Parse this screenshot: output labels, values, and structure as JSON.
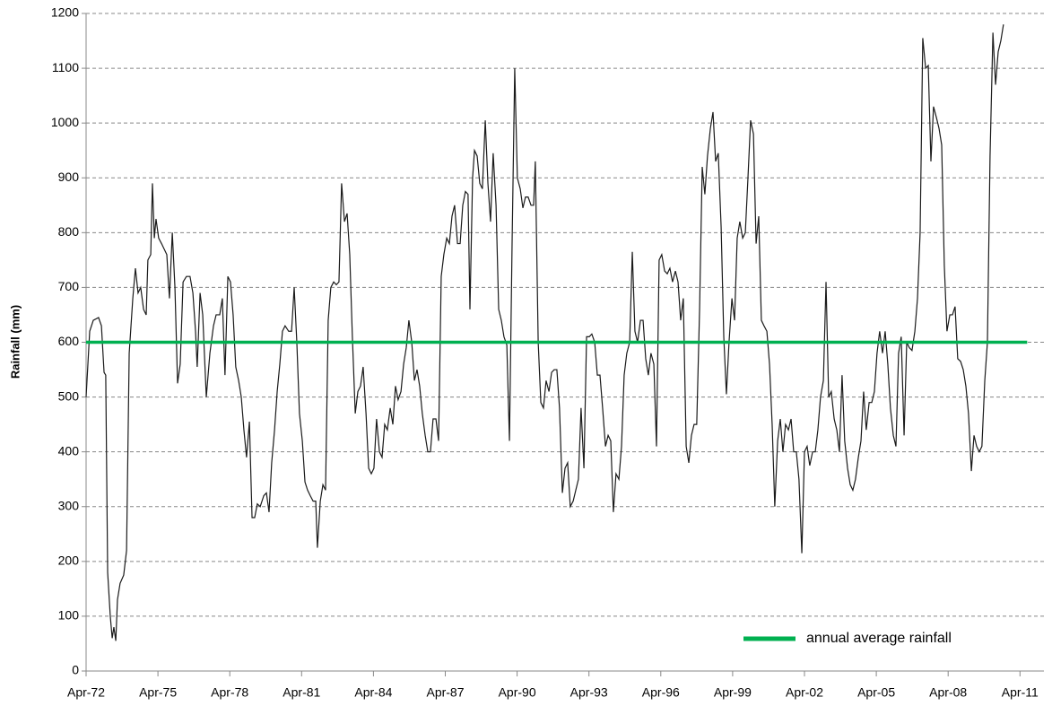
{
  "chart_data": {
    "type": "line",
    "y_label": "Rainfall (mm)",
    "ylim": [
      0,
      1200
    ],
    "yticks": [
      0,
      100,
      200,
      300,
      400,
      500,
      600,
      700,
      800,
      900,
      1000,
      1100,
      1200
    ],
    "xlim": [
      1972.25,
      2012.25
    ],
    "xticks": [
      {
        "value": 1972.25,
        "label": "Apr-72"
      },
      {
        "value": 1975.25,
        "label": "Apr-75"
      },
      {
        "value": 1978.25,
        "label": "Apr-78"
      },
      {
        "value": 1981.25,
        "label": "Apr-81"
      },
      {
        "value": 1984.25,
        "label": "Apr-84"
      },
      {
        "value": 1987.25,
        "label": "Apr-87"
      },
      {
        "value": 1990.25,
        "label": "Apr-90"
      },
      {
        "value": 1993.25,
        "label": "Apr-93"
      },
      {
        "value": 1996.25,
        "label": "Apr-96"
      },
      {
        "value": 1999.25,
        "label": "Apr-99"
      },
      {
        "value": 2002.25,
        "label": "Apr-02"
      },
      {
        "value": 2005.25,
        "label": "Apr-05"
      },
      {
        "value": 2008.25,
        "label": "Apr-08"
      },
      {
        "value": 2011.25,
        "label": "Apr-11"
      }
    ],
    "grid": true,
    "legend": "lower right",
    "series": [
      {
        "color": "#1a1a1a",
        "x": [
          1972.25,
          1972.4,
          1972.55,
          1972.77,
          1972.89,
          1973.0,
          1973.07,
          1973.15,
          1973.26,
          1973.34,
          1973.41,
          1973.49,
          1973.56,
          1973.67,
          1973.82,
          1973.94,
          1974.05,
          1974.2,
          1974.31,
          1974.42,
          1974.53,
          1974.65,
          1974.76,
          1974.83,
          1974.95,
          1975.02,
          1975.1,
          1975.17,
          1975.28,
          1975.4,
          1975.51,
          1975.62,
          1975.73,
          1975.85,
          1975.96,
          1976.07,
          1976.18,
          1976.3,
          1976.44,
          1976.59,
          1976.71,
          1976.82,
          1976.89,
          1977.01,
          1977.12,
          1977.27,
          1977.42,
          1977.57,
          1977.68,
          1977.83,
          1977.94,
          1978.05,
          1978.17,
          1978.28,
          1978.39,
          1978.5,
          1978.62,
          1978.73,
          1978.84,
          1978.95,
          1979.07,
          1979.18,
          1979.29,
          1979.4,
          1979.52,
          1979.67,
          1979.78,
          1979.89,
          1980.0,
          1980.12,
          1980.23,
          1980.34,
          1980.45,
          1980.56,
          1980.71,
          1980.83,
          1980.94,
          1981.05,
          1981.16,
          1981.28,
          1981.39,
          1981.5,
          1981.61,
          1981.73,
          1981.84,
          1981.91,
          1982.03,
          1982.14,
          1982.25,
          1982.36,
          1982.47,
          1982.59,
          1982.7,
          1982.81,
          1982.92,
          1983.04,
          1983.15,
          1983.26,
          1983.37,
          1983.49,
          1983.6,
          1983.71,
          1983.82,
          1983.94,
          1984.05,
          1984.16,
          1984.27,
          1984.38,
          1984.5,
          1984.61,
          1984.72,
          1984.83,
          1984.95,
          1985.06,
          1985.17,
          1985.28,
          1985.4,
          1985.51,
          1985.62,
          1985.73,
          1985.85,
          1985.96,
          1986.07,
          1986.18,
          1986.29,
          1986.41,
          1986.52,
          1986.63,
          1986.74,
          1986.86,
          1986.97,
          1987.08,
          1987.19,
          1987.31,
          1987.42,
          1987.53,
          1987.64,
          1987.76,
          1987.87,
          1987.98,
          1988.09,
          1988.2,
          1988.28,
          1988.39,
          1988.47,
          1988.58,
          1988.69,
          1988.8,
          1988.92,
          1989.03,
          1989.14,
          1989.25,
          1989.37,
          1989.48,
          1989.59,
          1989.7,
          1989.82,
          1989.93,
          1990.04,
          1990.15,
          1990.26,
          1990.38,
          1990.49,
          1990.6,
          1990.71,
          1990.83,
          1990.94,
          1991.01,
          1991.13,
          1991.24,
          1991.35,
          1991.46,
          1991.58,
          1991.69,
          1991.8,
          1991.91,
          1992.02,
          1992.14,
          1992.25,
          1992.36,
          1992.47,
          1992.59,
          1992.7,
          1992.81,
          1992.92,
          1993.04,
          1993.15,
          1993.26,
          1993.37,
          1993.49,
          1993.6,
          1993.71,
          1993.82,
          1993.94,
          1994.05,
          1994.16,
          1994.27,
          1994.38,
          1994.5,
          1994.61,
          1994.72,
          1994.83,
          1994.95,
          1995.06,
          1995.17,
          1995.28,
          1995.4,
          1995.51,
          1995.62,
          1995.73,
          1995.84,
          1995.96,
          1996.07,
          1996.18,
          1996.29,
          1996.41,
          1996.52,
          1996.63,
          1996.74,
          1996.86,
          1996.97,
          1997.08,
          1997.19,
          1997.31,
          1997.42,
          1997.53,
          1997.64,
          1997.75,
          1997.87,
          1997.98,
          1998.09,
          1998.2,
          1998.32,
          1998.43,
          1998.54,
          1998.65,
          1998.77,
          1998.88,
          1998.99,
          1999.1,
          1999.22,
          1999.33,
          1999.44,
          1999.55,
          1999.67,
          1999.78,
          1999.89,
          2000.0,
          2000.12,
          2000.23,
          2000.34,
          2000.45,
          2000.56,
          2000.68,
          2000.79,
          2000.9,
          2001.01,
          2001.13,
          2001.24,
          2001.35,
          2001.46,
          2001.58,
          2001.69,
          2001.8,
          2001.91,
          2002.02,
          2002.14,
          2002.25,
          2002.36,
          2002.47,
          2002.59,
          2002.7,
          2002.81,
          2002.92,
          2003.04,
          2003.15,
          2003.26,
          2003.37,
          2003.49,
          2003.6,
          2003.71,
          2003.82,
          2003.93,
          2004.05,
          2004.16,
          2004.27,
          2004.38,
          2004.5,
          2004.61,
          2004.72,
          2004.83,
          2004.95,
          2005.06,
          2005.17,
          2005.28,
          2005.39,
          2005.51,
          2005.62,
          2005.73,
          2005.84,
          2005.96,
          2006.07,
          2006.18,
          2006.29,
          2006.41,
          2006.52,
          2006.63,
          2006.74,
          2006.86,
          2006.97,
          2007.08,
          2007.19,
          2007.31,
          2007.42,
          2007.53,
          2007.64,
          2007.76,
          2007.87,
          2007.98,
          2008.09,
          2008.2,
          2008.32,
          2008.43,
          2008.54,
          2008.65,
          2008.77,
          2008.88,
          2008.99,
          2009.1,
          2009.22,
          2009.33,
          2009.44,
          2009.55,
          2009.66,
          2009.78,
          2009.89,
          2010.0,
          2010.12,
          2010.23,
          2010.34,
          2010.45,
          2010.56
        ],
        "values": [
          500,
          620,
          640,
          645,
          630,
          545,
          540,
          180,
          100,
          60,
          80,
          55,
          130,
          160,
          175,
          220,
          580,
          680,
          735,
          690,
          700,
          660,
          650,
          750,
          760,
          890,
          790,
          825,
          790,
          780,
          770,
          760,
          680,
          800,
          700,
          525,
          560,
          710,
          720,
          720,
          690,
          620,
          555,
          690,
          650,
          500,
          580,
          630,
          650,
          650,
          680,
          540,
          720,
          710,
          650,
          555,
          530,
          500,
          440,
          390,
          455,
          280,
          280,
          305,
          300,
          320,
          325,
          290,
          380,
          440,
          510,
          560,
          620,
          630,
          620,
          620,
          700,
          600,
          470,
          420,
          345,
          330,
          320,
          310,
          310,
          225,
          310,
          340,
          330,
          640,
          700,
          710,
          705,
          710,
          890,
          820,
          835,
          760,
          610,
          470,
          510,
          520,
          555,
          470,
          370,
          360,
          370,
          460,
          400,
          390,
          450,
          440,
          480,
          450,
          520,
          495,
          510,
          560,
          590,
          640,
          600,
          530,
          550,
          520,
          470,
          430,
          400,
          400,
          460,
          460,
          420,
          720,
          760,
          790,
          780,
          830,
          850,
          780,
          780,
          850,
          875,
          870,
          660,
          900,
          950,
          940,
          890,
          880,
          1005,
          890,
          820,
          945,
          850,
          660,
          640,
          610,
          595,
          420,
          780,
          1100,
          900,
          880,
          845,
          865,
          865,
          850,
          850,
          930,
          600,
          490,
          480,
          530,
          510,
          545,
          550,
          550,
          480,
          325,
          370,
          380,
          300,
          310,
          330,
          350,
          480,
          370,
          610,
          610,
          615,
          600,
          540,
          540,
          480,
          410,
          430,
          420,
          290,
          360,
          350,
          410,
          540,
          580,
          600,
          765,
          620,
          600,
          640,
          640,
          570,
          540,
          580,
          560,
          410,
          750,
          760,
          730,
          725,
          735,
          710,
          730,
          710,
          640,
          680,
          410,
          380,
          430,
          450,
          450,
          660,
          920,
          870,
          940,
          990,
          1020,
          930,
          945,
          810,
          610,
          505,
          600,
          680,
          640,
          790,
          820,
          790,
          800,
          900,
          1005,
          980,
          780,
          830,
          640,
          630,
          620,
          560,
          450,
          300,
          420,
          460,
          400,
          450,
          440,
          460,
          400,
          400,
          350,
          215,
          400,
          410,
          375,
          400,
          400,
          440,
          500,
          530,
          710,
          500,
          510,
          460,
          440,
          400,
          540,
          420,
          370,
          340,
          330,
          350,
          390,
          420,
          510,
          440,
          490,
          490,
          510,
          580,
          620,
          580,
          620,
          560,
          480,
          430,
          410,
          580,
          610,
          430,
          600,
          590,
          585,
          620,
          680,
          800,
          1155,
          1100,
          1105,
          930,
          1030,
          1010,
          990,
          960,
          740,
          620,
          650,
          650,
          665,
          570,
          565,
          550,
          520,
          470,
          365,
          430,
          410,
          400,
          410,
          530,
          600,
          940,
          1165,
          1070,
          1130,
          1150,
          1180
        ]
      },
      {
        "name": "annual average rainfall",
        "color": "#00b050",
        "x": [
          1972.25,
          2011.55
        ],
        "values": [
          600,
          600
        ]
      }
    ]
  }
}
